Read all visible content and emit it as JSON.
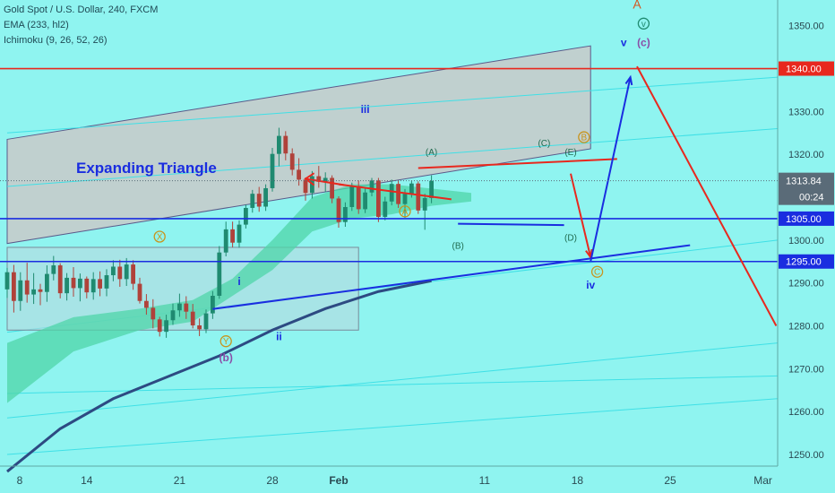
{
  "header": {
    "title": "Gold Spot / U.S. Dollar, 240, FXCM",
    "indicator_1": "EMA (233, hl2)",
    "indicator_2": "Ichimoku (9, 26, 52, 26)"
  },
  "colors": {
    "background": "#8ff4f0",
    "channel_fill": "#c9c9c9",
    "up_candle": "#1f8a70",
    "down_candle": "#b0423a",
    "ema": "#2d4a82",
    "ichimoku_cloud": "#4fd6a8",
    "red_level": "#e8281e",
    "blue_level": "#1a2de0",
    "price_badge": "#5a6b78"
  },
  "chart_data": {
    "type": "candlestick",
    "symbol": "XAUUSD",
    "timeframe": "240",
    "ylim": [
      1241,
      1356
    ],
    "y_ticks": [
      1250,
      1260,
      1270,
      1280,
      1290,
      1300,
      1310,
      1320,
      1330,
      1340,
      1350
    ],
    "y_tick_labels": [
      "1250.00",
      "1260.00",
      "1270.00",
      "1280.00",
      "1290.00",
      "1300.00",
      "1310.00",
      "1320.00",
      "1330.00",
      "1340.00",
      "1350.00"
    ],
    "x_tick_labels": [
      "8",
      "14",
      "21",
      "28",
      "Feb",
      "11",
      "18",
      "25",
      "Mar"
    ],
    "x_tick_index": [
      0,
      6,
      13,
      20,
      25,
      36,
      43,
      50,
      57
    ],
    "last_price": 1313.84,
    "last_price_label": "1313.84",
    "countdown_label": "00:24",
    "horizontal_levels": [
      {
        "value": 1340,
        "label": "1340.00",
        "color": "#e8281e"
      },
      {
        "value": 1305,
        "label": "1305.00",
        "color": "#1a2de0"
      },
      {
        "value": 1295,
        "label": "1295.00",
        "color": "#1a2de0"
      }
    ],
    "candles": [
      [
        1288.5,
        1293.5,
        1286.5,
        1292.5
      ],
      [
        1292.5,
        1294.2,
        1283.1,
        1285.8
      ],
      [
        1285.8,
        1292.5,
        1283.5,
        1290.6
      ],
      [
        1290.6,
        1294.7,
        1285.4,
        1287.3
      ],
      [
        1287.3,
        1292.3,
        1285.1,
        1288.5
      ],
      [
        1288.5,
        1289.8,
        1284.8,
        1287.9
      ],
      [
        1287.9,
        1294.1,
        1285.6,
        1292.1
      ],
      [
        1292.1,
        1296.3,
        1290.6,
        1294.1
      ],
      [
        1294.1,
        1294.6,
        1286.4,
        1287.6
      ],
      [
        1287.6,
        1292.3,
        1285.9,
        1291.2
      ],
      [
        1291.2,
        1293.7,
        1286.8,
        1288.8
      ],
      [
        1288.8,
        1292.2,
        1285.7,
        1291.0
      ],
      [
        1291.0,
        1291.5,
        1286.4,
        1287.8
      ],
      [
        1287.8,
        1292.5,
        1286.1,
        1290.9
      ],
      [
        1290.9,
        1292.7,
        1286.9,
        1288.7
      ],
      [
        1288.7,
        1293.2,
        1286.9,
        1291.8
      ],
      [
        1291.8,
        1295.3,
        1290.4,
        1293.8
      ],
      [
        1293.8,
        1295.4,
        1289.1,
        1290.9
      ],
      [
        1290.9,
        1295.8,
        1289.3,
        1294.3
      ],
      [
        1294.3,
        1295.3,
        1288.4,
        1289.8
      ],
      [
        1289.8,
        1291.2,
        1285.2,
        1285.8
      ],
      [
        1285.8,
        1287.4,
        1282.6,
        1284.2
      ],
      [
        1284.2,
        1286.2,
        1279.4,
        1281.5
      ],
      [
        1281.5,
        1282.1,
        1277.5,
        1278.6
      ],
      [
        1278.6,
        1282.6,
        1277.2,
        1281.3
      ],
      [
        1281.3,
        1285.2,
        1280.2,
        1283.6
      ],
      [
        1283.6,
        1287.5,
        1282.1,
        1285.2
      ],
      [
        1285.2,
        1286.9,
        1281.6,
        1283.3
      ],
      [
        1283.3,
        1285.1,
        1279.4,
        1280.1
      ],
      [
        1280.1,
        1281.7,
        1277.6,
        1279.2
      ],
      [
        1279.2,
        1283.8,
        1278.3,
        1282.9
      ],
      [
        1282.9,
        1288.1,
        1281.6,
        1287.0
      ],
      [
        1287.0,
        1298.6,
        1286.3,
        1297.1
      ],
      [
        1297.1,
        1304.3,
        1296.2,
        1302.5
      ],
      [
        1302.5,
        1304.3,
        1298.3,
        1299.4
      ],
      [
        1299.4,
        1304.6,
        1298.2,
        1303.6
      ],
      [
        1303.6,
        1308.3,
        1302.7,
        1307.5
      ],
      [
        1307.5,
        1311.7,
        1306.4,
        1310.8
      ],
      [
        1310.8,
        1312.4,
        1306.6,
        1307.8
      ],
      [
        1307.8,
        1313.0,
        1306.8,
        1312.1
      ],
      [
        1312.1,
        1321.5,
        1311.3,
        1320.1
      ],
      [
        1320.1,
        1326.2,
        1317.2,
        1324.3
      ],
      [
        1324.3,
        1325.4,
        1318.6,
        1320.2
      ],
      [
        1320.2,
        1321.4,
        1315.1,
        1316.4
      ],
      [
        1316.4,
        1319.1,
        1312.7,
        1314.1
      ],
      [
        1314.1,
        1314.6,
        1309.2,
        1311.0
      ],
      [
        1311.0,
        1316.1,
        1309.7,
        1314.9
      ],
      [
        1314.9,
        1317.3,
        1312.2,
        1313.6
      ],
      [
        1313.6,
        1315.8,
        1311.2,
        1314.5
      ],
      [
        1314.5,
        1315.1,
        1308.6,
        1309.7
      ],
      [
        1309.7,
        1310.2,
        1302.9,
        1304.2
      ],
      [
        1304.2,
        1308.8,
        1303.1,
        1307.7
      ],
      [
        1307.7,
        1313.4,
        1306.8,
        1312.6
      ],
      [
        1312.6,
        1313.9,
        1306.1,
        1307.2
      ],
      [
        1307.2,
        1312.3,
        1306.3,
        1311.1
      ],
      [
        1311.1,
        1314.5,
        1310.2,
        1313.9
      ],
      [
        1313.9,
        1314.5,
        1304.2,
        1305.4
      ],
      [
        1305.4,
        1310.1,
        1304.6,
        1309.0
      ],
      [
        1309.0,
        1314.1,
        1308.1,
        1313.1
      ],
      [
        1313.1,
        1313.9,
        1307.5,
        1308.4
      ],
      [
        1308.4,
        1311.9,
        1305.2,
        1310.8
      ],
      [
        1310.8,
        1313.9,
        1309.9,
        1313.2
      ],
      [
        1313.2,
        1313.7,
        1306.1,
        1306.9
      ],
      [
        1306.9,
        1310.8,
        1302.4,
        1309.8
      ],
      [
        1309.8,
        1315.1,
        1308.6,
        1313.8
      ]
    ],
    "ema": [
      {
        "i": 0,
        "v": 1246.0
      },
      {
        "i": 8,
        "v": 1256.0
      },
      {
        "i": 16,
        "v": 1263.0
      },
      {
        "i": 24,
        "v": 1268.0
      },
      {
        "i": 32,
        "v": 1273.0
      },
      {
        "i": 40,
        "v": 1279.0
      },
      {
        "i": 48,
        "v": 1284.0
      },
      {
        "i": 56,
        "v": 1288.0
      },
      {
        "i": 64,
        "v": 1290.5
      }
    ],
    "ichimoku_cloud": {
      "upper": [
        {
          "i": 0,
          "v": 1276
        },
        {
          "i": 10,
          "v": 1282
        },
        {
          "i": 20,
          "v": 1284
        },
        {
          "i": 28,
          "v": 1286
        },
        {
          "i": 34,
          "v": 1291
        },
        {
          "i": 40,
          "v": 1300
        },
        {
          "i": 46,
          "v": 1310
        },
        {
          "i": 52,
          "v": 1313
        },
        {
          "i": 58,
          "v": 1313
        },
        {
          "i": 64,
          "v": 1312
        },
        {
          "i": 70,
          "v": 1311
        }
      ],
      "lower": [
        {
          "i": 0,
          "v": 1262
        },
        {
          "i": 10,
          "v": 1274
        },
        {
          "i": 20,
          "v": 1279
        },
        {
          "i": 28,
          "v": 1281
        },
        {
          "i": 34,
          "v": 1287
        },
        {
          "i": 40,
          "v": 1293
        },
        {
          "i": 46,
          "v": 1302
        },
        {
          "i": 52,
          "v": 1305
        },
        {
          "i": 58,
          "v": 1306
        },
        {
          "i": 64,
          "v": 1308
        },
        {
          "i": 70,
          "v": 1309
        }
      ]
    },
    "channel": {
      "upper_start": {
        "i": 0,
        "v": 1323.5
      },
      "upper_end": {
        "i": 88,
        "v": 1345.3
      },
      "lower_start": {
        "i": 0,
        "v": 1299.2
      },
      "lower_end": {
        "i": 88,
        "v": 1321.3
      }
    },
    "range_box": {
      "i0": 0,
      "i1": 53,
      "top": 1298.3,
      "bottom": 1279.0
    },
    "rising_trendline": {
      "from": {
        "i": 0,
        "v": 1277.5
      },
      "to": {
        "i": 103,
        "v": 1298.8
      }
    },
    "thin_lines": [
      {
        "from": {
          "i": 0,
          "v": 1325.0
        },
        "to": {
          "i": 117,
          "v": 1338.0
        }
      },
      {
        "from": {
          "i": 0,
          "v": 1312.5
        },
        "to": {
          "i": 117,
          "v": 1326.0
        }
      },
      {
        "from": {
          "i": 0,
          "v": 1278.5
        },
        "to": {
          "i": 117,
          "v": 1300.0
        }
      },
      {
        "from": {
          "i": 0,
          "v": 1258.5
        },
        "to": {
          "i": 117,
          "v": 1276.0
        }
      },
      {
        "from": {
          "i": 0,
          "v": 1250.0
        },
        "to": {
          "i": 117,
          "v": 1263.0
        }
      },
      {
        "from": {
          "i": 0,
          "v": 1264.2
        },
        "to": {
          "i": 117,
          "v": 1268.3
        }
      }
    ],
    "triangle_lines": [
      {
        "from": {
          "i": 62,
          "v": 1316.8
        },
        "to": {
          "i": 92,
          "v": 1318.9
        }
      },
      {
        "from": {
          "i": 50,
          "v": 1313.0
        },
        "to": {
          "i": 67,
          "v": 1309.5
        }
      },
      {
        "from": {
          "i": 68,
          "v": 1303.8
        },
        "to": {
          "i": 84,
          "v": 1303.5
        }
      }
    ],
    "projection_blue": [
      {
        "i": 88,
        "v": 1295.0
      },
      {
        "i": 94,
        "v": 1338.0
      }
    ],
    "projection_red": [
      {
        "i": 85,
        "v": 1315.5
      },
      {
        "i": 88,
        "v": 1296.0
      }
    ],
    "projection_red_drop": [
      {
        "i": 95,
        "v": 1340.5
      },
      {
        "i": 116,
        "v": 1280.0
      }
    ],
    "annotations": [
      {
        "text": "Expanding Triangle",
        "i": 21,
        "v": 1315.6,
        "color": "#1a2de0",
        "size": 17,
        "bold": true
      },
      {
        "text": "iii",
        "i": 54,
        "v": 1329.7,
        "color": "#1a2de0",
        "size": 12,
        "bold": true
      },
      {
        "text": "i",
        "i": 35,
        "v": 1289.5,
        "color": "#1a2de0",
        "size": 12,
        "bold": true
      },
      {
        "text": "ii",
        "i": 41,
        "v": 1276.7,
        "color": "#1a2de0",
        "size": 12,
        "bold": true
      },
      {
        "text": "iv",
        "i": 88,
        "v": 1288.7,
        "color": "#1a2de0",
        "size": 12,
        "bold": true
      },
      {
        "text": "v",
        "i": 93,
        "v": 1345.2,
        "color": "#1a2de0",
        "size": 12,
        "bold": true
      },
      {
        "text": "(c)",
        "i": 96,
        "v": 1345.2,
        "color": "#8a4fa8",
        "size": 12,
        "bold": true
      },
      {
        "text": "(b)",
        "i": 33,
        "v": 1271.7,
        "color": "#8a4fa8",
        "size": 12,
        "bold": true
      },
      {
        "text": "(A)",
        "i": 64,
        "v": 1319.8,
        "color": "#1f6b4f",
        "size": 10,
        "bold": false
      },
      {
        "text": "(B)",
        "i": 68,
        "v": 1298.0,
        "color": "#1f6b4f",
        "size": 10,
        "bold": false
      },
      {
        "text": "(C)",
        "i": 81,
        "v": 1321.9,
        "color": "#1f6b4f",
        "size": 10,
        "bold": false
      },
      {
        "text": "(D)",
        "i": 85,
        "v": 1299.9,
        "color": "#1f6b4f",
        "size": 10,
        "bold": false
      },
      {
        "text": "(E)",
        "i": 85,
        "v": 1319.8,
        "color": "#1f6b4f",
        "size": 10,
        "bold": false
      },
      {
        "text": "A",
        "i": 95,
        "v": 1354.0,
        "color": "#d4561e",
        "size": 14,
        "bold": false
      }
    ],
    "circle_labels": [
      {
        "text": "X",
        "i": 23,
        "v": 1300.8,
        "color": "#c8941e"
      },
      {
        "text": "Y",
        "i": 33,
        "v": 1276.4,
        "color": "#c8941e"
      },
      {
        "text": "A",
        "i": 60,
        "v": 1306.7,
        "color": "#c8941e"
      },
      {
        "text": "B",
        "i": 87,
        "v": 1324.0,
        "color": "#c8941e"
      },
      {
        "text": "C",
        "i": 89,
        "v": 1292.6,
        "color": "#c8941e"
      },
      {
        "text": "v",
        "i": 96,
        "v": 1350.5,
        "color": "#1f8a70"
      }
    ]
  }
}
